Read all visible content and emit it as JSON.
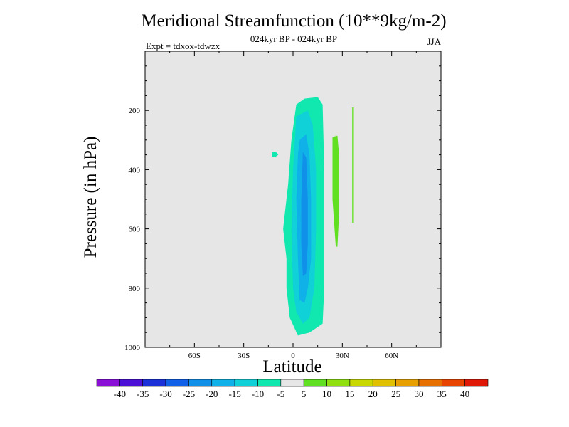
{
  "title": "Meridional Streamfunction (10**9kg/m-2)",
  "subtitle": "024kyr BP - 024kyr BP",
  "expt": "Expt = tdxox-tdwzx",
  "season": "JJA",
  "chart_data": {
    "type": "contour",
    "xlabel": "Latitude",
    "ylabel": "Pressure (in hPa)",
    "xlim": [
      -90,
      90
    ],
    "ylim": [
      1000,
      0
    ],
    "x_ticks": [
      -60,
      -30,
      0,
      30,
      60
    ],
    "x_tick_labels": [
      "60S",
      "30S",
      "0",
      "30N",
      "60N"
    ],
    "y_ticks": [
      200,
      400,
      600,
      800,
      1000
    ],
    "y_tick_labels": [
      "200",
      "400",
      "600",
      "800",
      "1000"
    ],
    "background_color": "#e6e6e6",
    "colorbar": {
      "levels": [
        -40,
        -35,
        -30,
        -25,
        -20,
        -15,
        -10,
        -5,
        5,
        10,
        15,
        20,
        25,
        30,
        35,
        40
      ],
      "level_labels": [
        "-40",
        "-35",
        "-30",
        "-25",
        "-20",
        "-15",
        "-10",
        "-5",
        "5",
        "10",
        "15",
        "20",
        "25",
        "30",
        "35",
        "40"
      ],
      "colors": [
        "#8a10d8",
        "#4a10d8",
        "#1a30d8",
        "#1060e8",
        "#1090e8",
        "#10b0e8",
        "#10d0d8",
        "#10e8b0",
        "#e6e6e6",
        "#60e020",
        "#90e010",
        "#c8d800",
        "#e0c000",
        "#e8a000",
        "#e87000",
        "#e84400",
        "#e01808"
      ]
    },
    "contours": [
      {
        "name": "neg-5",
        "color": "#10e8b0",
        "points": [
          [
            2,
            180
          ],
          [
            7,
            160
          ],
          [
            15,
            155
          ],
          [
            18,
            180
          ],
          [
            19,
            400
          ],
          [
            19,
            800
          ],
          [
            18,
            920
          ],
          [
            10,
            950
          ],
          [
            3,
            960
          ],
          [
            -2,
            900
          ],
          [
            -4,
            800
          ],
          [
            -4,
            700
          ],
          [
            -6,
            600
          ],
          [
            -5,
            550
          ],
          [
            -3,
            450
          ],
          [
            -1,
            300
          ]
        ]
      },
      {
        "name": "neg-10",
        "color": "#10d0d8",
        "points": [
          [
            2,
            220
          ],
          [
            9,
            200
          ],
          [
            12,
            250
          ],
          [
            14,
            400
          ],
          [
            14,
            600
          ],
          [
            13,
            800
          ],
          [
            10,
            900
          ],
          [
            6,
            920
          ],
          [
            2,
            880
          ],
          [
            0,
            800
          ],
          [
            -1,
            600
          ],
          [
            0,
            400
          ]
        ]
      },
      {
        "name": "neg-15",
        "color": "#10b0e8",
        "points": [
          [
            4,
            300
          ],
          [
            8,
            280
          ],
          [
            10,
            350
          ],
          [
            11,
            500
          ],
          [
            11,
            700
          ],
          [
            9,
            800
          ],
          [
            7,
            850
          ],
          [
            4,
            840
          ],
          [
            3,
            700
          ],
          [
            2,
            500
          ],
          [
            3,
            350
          ]
        ]
      },
      {
        "name": "neg-20",
        "color": "#1090e8",
        "points": [
          [
            6,
            340
          ],
          [
            8,
            360
          ],
          [
            9,
            500
          ],
          [
            9,
            650
          ],
          [
            8,
            750
          ],
          [
            6,
            760
          ],
          [
            5,
            650
          ],
          [
            5,
            500
          ]
        ]
      },
      {
        "name": "neg-5-south",
        "color": "#10e8b0",
        "points": [
          [
            -13,
            340
          ],
          [
            -10,
            342
          ],
          [
            -9,
            350
          ],
          [
            -11,
            358
          ],
          [
            -13,
            355
          ]
        ]
      },
      {
        "name": "pos-5-a",
        "color": "#60e020",
        "points": [
          [
            24,
            290
          ],
          [
            27,
            285
          ],
          [
            28,
            350
          ],
          [
            28,
            550
          ],
          [
            27,
            660
          ],
          [
            26,
            660
          ],
          [
            24,
            500
          ],
          [
            24,
            400
          ]
        ]
      },
      {
        "name": "pos-5-b",
        "color": "#60e020",
        "points": [
          [
            36,
            190
          ],
          [
            37,
            190
          ],
          [
            37,
            400
          ],
          [
            37,
            580
          ],
          [
            36,
            580
          ],
          [
            36,
            400
          ]
        ]
      }
    ]
  }
}
